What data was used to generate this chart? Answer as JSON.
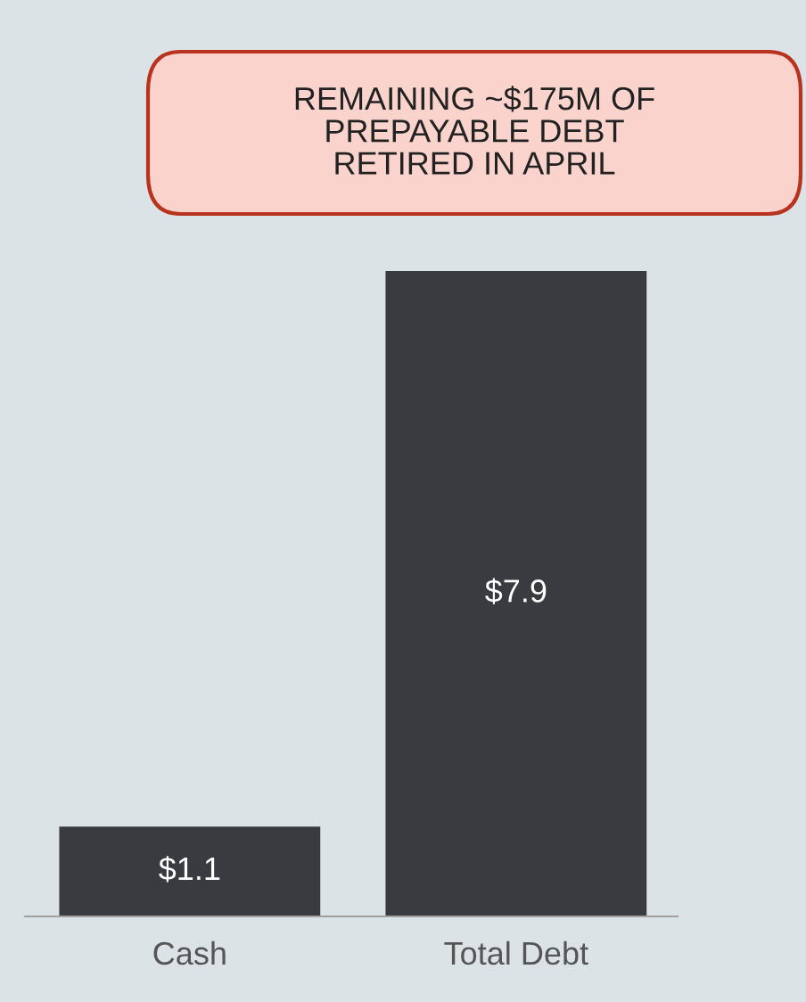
{
  "chart_data": {
    "type": "bar",
    "categories": [
      "Cash",
      "Total Debt"
    ],
    "values": [
      1.1,
      7.9
    ],
    "value_labels": [
      "$1.1",
      "$7.9"
    ],
    "color": "#3a3b40",
    "annotations": [
      "REMAINING ~$175M OF\nPREPAYABLE DEBT\nRETIRED IN APRIL"
    ],
    "grid": false,
    "legend": false
  }
}
